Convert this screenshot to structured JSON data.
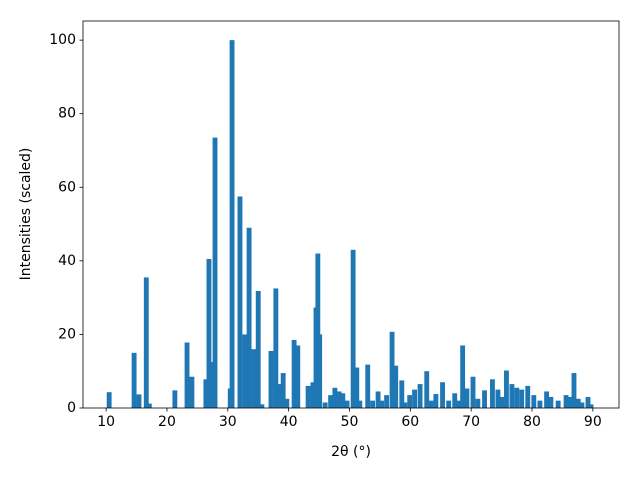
{
  "chart_data": {
    "type": "bar",
    "xlabel": "2θ (°)",
    "ylabel": "Intensities (scaled)",
    "color": "#1f77b4",
    "x": [
      10.5,
      14.6,
      15.4,
      16.6,
      17.1,
      21.3,
      23.3,
      24.1,
      26.4,
      26.9,
      27.4,
      27.9,
      30.4,
      30.7,
      32.0,
      32.8,
      33.5,
      34.3,
      35.0,
      35.6,
      37.1,
      37.9,
      38.6,
      39.1,
      39.7,
      40.9,
      41.5,
      43.2,
      44.0,
      44.5,
      44.8,
      45.1,
      46.0,
      46.9,
      47.6,
      48.3,
      48.9,
      49.6,
      50.6,
      51.2,
      51.7,
      53.0,
      53.8,
      54.7,
      55.3,
      56.1,
      57.0,
      57.6,
      58.6,
      59.1,
      59.9,
      60.7,
      61.6,
      62.7,
      63.4,
      64.2,
      65.3,
      66.3,
      67.3,
      68.0,
      68.6,
      69.3,
      70.3,
      71.1,
      72.2,
      73.5,
      74.4,
      75.0,
      75.8,
      76.7,
      77.5,
      78.3,
      79.3,
      80.3,
      81.3,
      82.4,
      83.1,
      84.3,
      85.6,
      86.4,
      86.9,
      87.6,
      88.2,
      89.2,
      89.7
    ],
    "values": [
      4.3,
      15,
      3.7,
      35.5,
      1.2,
      4.8,
      17.8,
      8.5,
      7.8,
      40.5,
      12.5,
      73.5,
      5.3,
      100,
      57.5,
      20,
      49,
      16,
      31.8,
      1,
      15.5,
      32.5,
      6.5,
      9.5,
      2.5,
      18.5,
      17,
      6,
      7,
      27.3,
      42,
      20,
      1.5,
      3.5,
      5.5,
      4.5,
      4,
      2,
      43,
      11,
      2,
      11.8,
      2,
      4.5,
      2,
      3.5,
      20.7,
      11.5,
      7.5,
      1.5,
      3.5,
      5,
      6.5,
      10,
      2,
      3.8,
      7,
      2,
      4,
      2,
      17,
      5.3,
      8.5,
      2.5,
      4.8,
      7.8,
      5,
      3,
      10.2,
      6.5,
      5.5,
      5,
      6,
      3.5,
      2,
      4.5,
      3,
      2,
      3.5,
      3,
      9.5,
      2.5,
      1.5,
      3,
      1
    ],
    "xlim": [
      6.2,
      94.3
    ],
    "ylim": [
      0,
      105.2
    ],
    "xticks": [
      10,
      20,
      30,
      40,
      50,
      60,
      70,
      80,
      90
    ],
    "yticks": [
      0,
      20,
      40,
      60,
      80,
      100
    ]
  }
}
